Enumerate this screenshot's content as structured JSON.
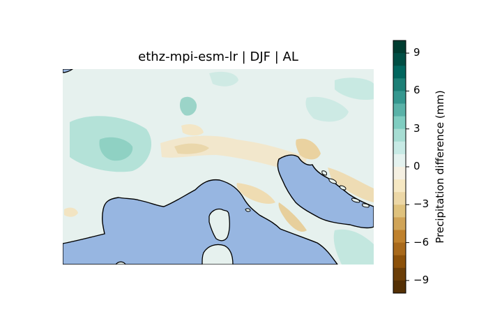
{
  "title": "ethz-mpi-esm-lr | DJF | AL",
  "colorbar": {
    "label": "Precipitation difference (mm)",
    "ticks": [
      9,
      6,
      3,
      0,
      -3,
      -6,
      -9
    ],
    "tick_labels": [
      "9",
      "6",
      "3",
      "0",
      "−3",
      "−6",
      "−9"
    ],
    "range": [
      -10,
      10
    ],
    "bins": 20,
    "colormap": "BrBG",
    "bin_colors": [
      "#543005",
      "#6b3e08",
      "#8c510a",
      "#a8691b",
      "#bf812d",
      "#d0a458",
      "#dfc27d",
      "#ecd7a6",
      "#f6e8c3",
      "#f5f0e2",
      "#e4f2ef",
      "#c7eae5",
      "#a7ddd3",
      "#80cdc1",
      "#5ab2a8",
      "#35978f",
      "#1c7f76",
      "#01665e",
      "#004e44",
      "#003c30"
    ]
  },
  "map": {
    "sea_color": "#97b6e1",
    "coastline_color": "#000000"
  }
}
